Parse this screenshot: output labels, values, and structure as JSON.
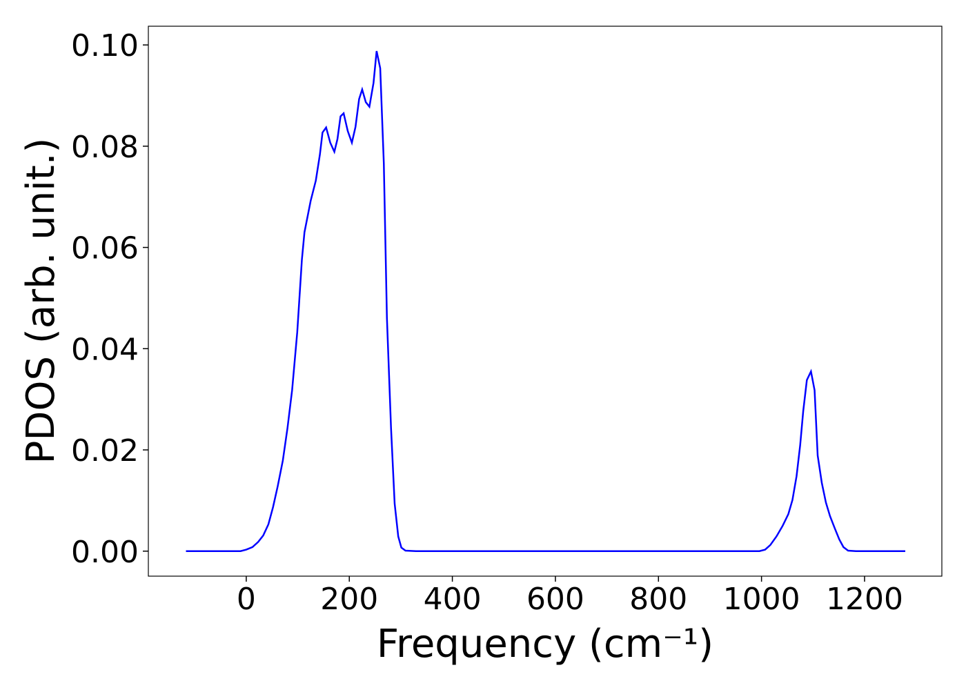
{
  "chart_data": {
    "type": "line",
    "xlabel": "Frequency (cm⁻¹)",
    "ylabel": "PDOS (arb. unit.)",
    "xlim": [
      -190,
      1350
    ],
    "ylim": [
      -0.00494,
      0.1037
    ],
    "xticks": [
      0,
      200,
      400,
      600,
      800,
      1000,
      1200
    ],
    "yticks": [
      {
        "value": 0,
        "label": "0.00"
      },
      {
        "value": 0.02,
        "label": "0.02"
      },
      {
        "value": 0.04,
        "label": "0.04"
      },
      {
        "value": 0.06,
        "label": "0.06"
      },
      {
        "value": 0.08,
        "label": "0.08"
      },
      {
        "value": 0.1,
        "label": "0.10"
      }
    ],
    "grid": false,
    "x": [
      -117,
      -11,
      0,
      12,
      23,
      33,
      43,
      52,
      61,
      71,
      80,
      89,
      99,
      108,
      113,
      125,
      135,
      143,
      148,
      155,
      163,
      171,
      177,
      183,
      189,
      197,
      205,
      212,
      219,
      225,
      232,
      239,
      247,
      253,
      260,
      267,
      273,
      281,
      288,
      295,
      301,
      309,
      329,
      996,
      1007,
      1017,
      1029,
      1041,
      1052,
      1060,
      1068,
      1075,
      1081,
      1088,
      1096,
      1103,
      1109,
      1117,
      1125,
      1133,
      1143,
      1151,
      1159,
      1168,
      1183,
      1279
    ],
    "series": [
      {
        "name": "PDOS",
        "color": "#0000ff",
        "values": [
          0,
          0,
          0.0003,
          0.0008,
          0.0018,
          0.0031,
          0.0053,
          0.0087,
          0.0128,
          0.0179,
          0.0243,
          0.0318,
          0.0433,
          0.0576,
          0.063,
          0.0692,
          0.0732,
          0.0784,
          0.0827,
          0.0837,
          0.0807,
          0.0789,
          0.0814,
          0.0859,
          0.0865,
          0.083,
          0.0807,
          0.0838,
          0.0893,
          0.0912,
          0.0887,
          0.0878,
          0.0925,
          0.0988,
          0.0954,
          0.0766,
          0.0461,
          0.0243,
          0.0094,
          0.0029,
          0.0007,
          0.0001,
          0,
          0,
          0.0003,
          0.0012,
          0.0029,
          0.005,
          0.0073,
          0.0101,
          0.0148,
          0.0209,
          0.0277,
          0.0338,
          0.0355,
          0.0318,
          0.0189,
          0.0135,
          0.0096,
          0.0069,
          0.0043,
          0.0023,
          0.0008,
          0.0001,
          0,
          0
        ]
      }
    ]
  }
}
